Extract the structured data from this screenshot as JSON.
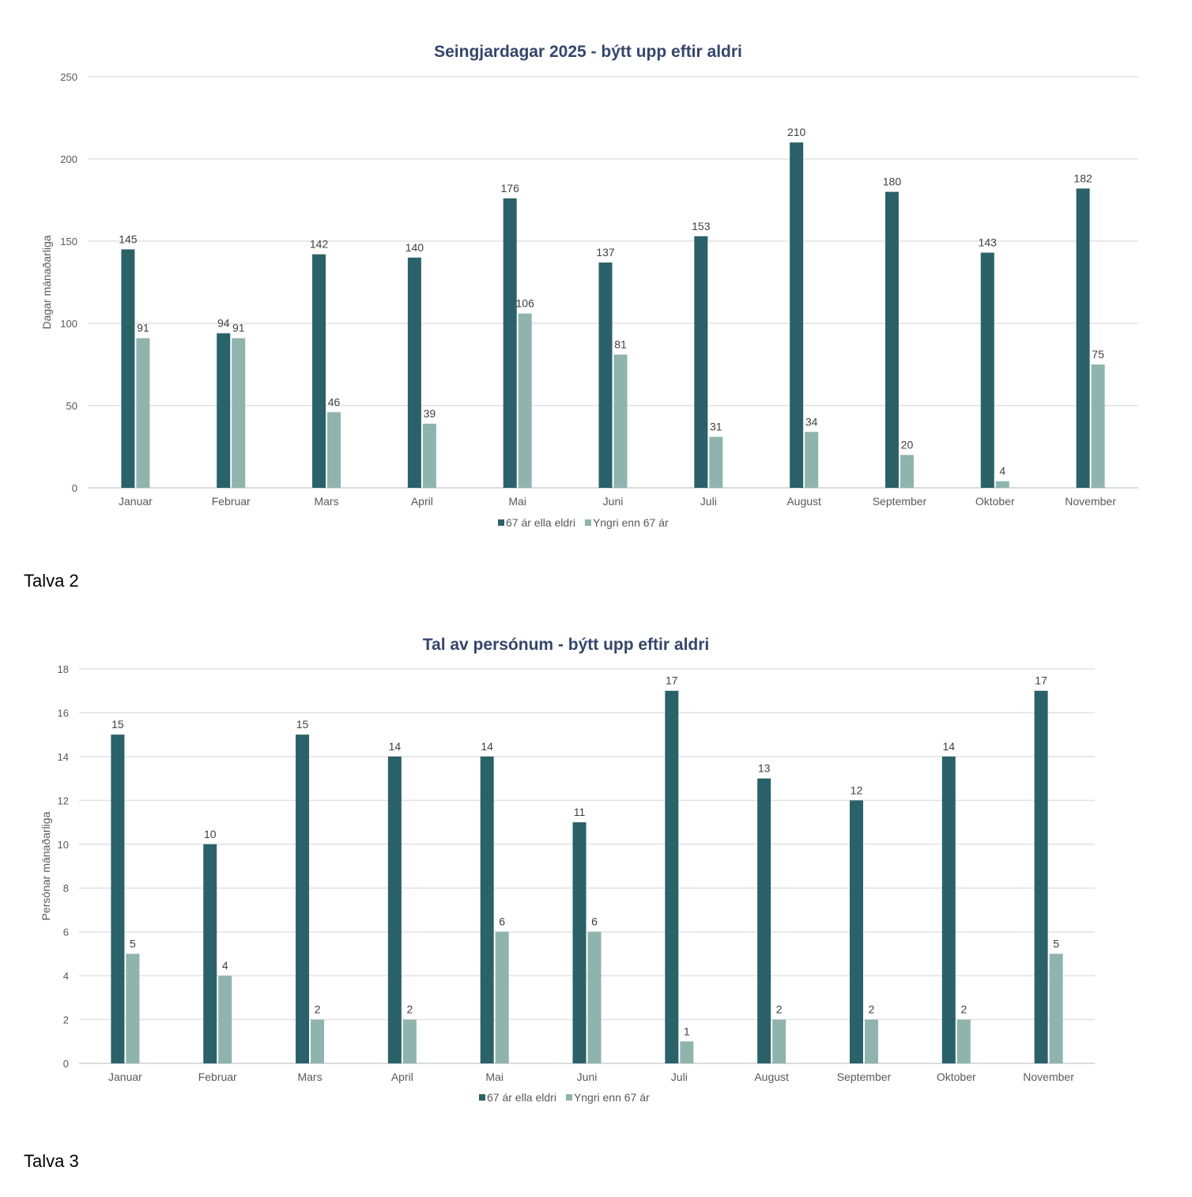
{
  "chart_data": [
    {
      "type": "bar",
      "title": "Seingjardagar 2025 - býtt upp eftir aldri",
      "xlabel": "",
      "ylabel": "Dagar mánaðarliga",
      "ylim": [
        0,
        250
      ],
      "yticks": [
        0,
        50,
        100,
        150,
        200,
        250
      ],
      "grid": true,
      "legend_position": "bottom",
      "categories": [
        "Januar",
        "Februar",
        "Mars",
        "April",
        "Mai",
        "Juni",
        "Juli",
        "August",
        "September",
        "Oktober",
        "November"
      ],
      "series": [
        {
          "name": "67 ár ella eldri",
          "color": "#2b6169",
          "values": [
            145,
            94,
            142,
            140,
            176,
            137,
            153,
            210,
            180,
            143,
            182
          ]
        },
        {
          "name": "Yngri enn 67 ár",
          "color": "#8fb4ae",
          "values": [
            91,
            91,
            46,
            39,
            106,
            81,
            31,
            34,
            20,
            4,
            75
          ]
        }
      ]
    },
    {
      "type": "bar",
      "title": "Tal av persónum - býtt upp eftir aldri",
      "xlabel": "",
      "ylabel": "Persónar mánaðarliga",
      "ylim": [
        0,
        18
      ],
      "yticks": [
        0,
        2,
        4,
        6,
        8,
        10,
        12,
        14,
        16,
        18
      ],
      "grid": true,
      "legend_position": "bottom",
      "categories": [
        "Januar",
        "Februar",
        "Mars",
        "April",
        "Mai",
        "Juni",
        "Juli",
        "August",
        "September",
        "Oktober",
        "November"
      ],
      "series": [
        {
          "name": "67 ár ella eldri",
          "color": "#2b6169",
          "values": [
            15,
            10,
            15,
            14,
            14,
            11,
            17,
            13,
            12,
            14,
            17
          ]
        },
        {
          "name": "Yngri enn 67 ár",
          "color": "#8fb4ae",
          "values": [
            5,
            4,
            2,
            2,
            6,
            6,
            1,
            2,
            2,
            2,
            5
          ]
        }
      ]
    }
  ],
  "captions": [
    "Talva 2",
    "Talva 3"
  ]
}
